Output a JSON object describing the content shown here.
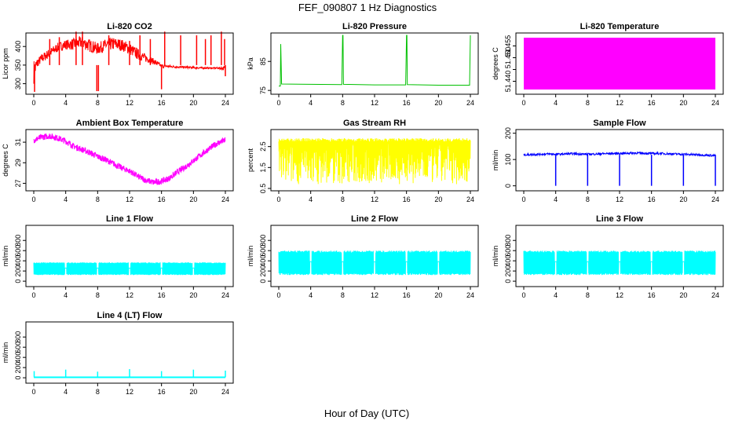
{
  "figure": {
    "title": "FEF_090807  1 Hz Diagnostics",
    "xlabel": "Hour of Day (UTC)"
  },
  "chart_data": [
    {
      "type": "line",
      "title": "Li-820 CO2",
      "ylabel": "Licor ppm",
      "xlim": [
        0,
        24
      ],
      "ylim": [
        278,
        430
      ],
      "xticks": [
        0,
        4,
        8,
        12,
        16,
        20,
        24
      ],
      "yticks": [
        300,
        350,
        400
      ],
      "color": "#ff0000",
      "envelope": {
        "x": [
          0,
          0.5,
          1,
          2,
          3,
          4,
          5,
          6,
          7,
          8,
          9,
          10,
          11,
          12,
          13,
          14,
          15,
          16,
          17,
          18,
          19,
          20,
          21,
          22,
          23,
          24
        ],
        "low": [
          300,
          345,
          355,
          370,
          385,
          392,
          390,
          395,
          385,
          378,
          388,
          390,
          388,
          378,
          365,
          358,
          352,
          343,
          343,
          342,
          341,
          340,
          340,
          340,
          340,
          335
        ],
        "high": [
          365,
          370,
          380,
          395,
          410,
          418,
          422,
          428,
          420,
          410,
          420,
          425,
          420,
          410,
          395,
          380,
          368,
          352,
          350,
          348,
          347,
          346,
          345,
          344,
          344,
          348
        ]
      },
      "spikes": [
        [
          0.1,
          278
        ],
        [
          2,
          420
        ],
        [
          3.2,
          425
        ],
        [
          5.3,
          445
        ],
        [
          6.1,
          440
        ],
        [
          7.9,
          280
        ],
        [
          8.1,
          280
        ],
        [
          9.4,
          430
        ],
        [
          12,
          415
        ],
        [
          13.3,
          430
        ],
        [
          14.6,
          420
        ],
        [
          16,
          285
        ],
        [
          16.4,
          440
        ],
        [
          18.4,
          430
        ],
        [
          20.4,
          430
        ],
        [
          21.5,
          420
        ],
        [
          22.2,
          430
        ],
        [
          23.5,
          445
        ],
        [
          23.9,
          420
        ],
        [
          24,
          320
        ]
      ]
    },
    {
      "type": "line",
      "title": "Li-820 Pressure",
      "ylabel": "kPa",
      "xlim": [
        0,
        24
      ],
      "ylim": [
        74.5,
        94
      ],
      "xticks": [
        0,
        4,
        8,
        12,
        16,
        20,
        24
      ],
      "yticks": [
        75,
        85
      ],
      "color": "#00c000",
      "x": [
        0,
        0.2,
        0.25,
        0.35,
        4,
        7.9,
        8,
        8.05,
        8.1,
        12,
        15.9,
        16,
        16.05,
        16.1,
        20,
        23.9,
        24
      ],
      "y": [
        76.5,
        76.5,
        91,
        77.2,
        77.1,
        77,
        94,
        94,
        77.1,
        76.9,
        76.9,
        94,
        94,
        77,
        76.8,
        76.8,
        94
      ]
    },
    {
      "type": "area",
      "title": "Li-820 Temperature",
      "ylabel": "degrees C",
      "xlim": [
        0,
        24
      ],
      "ylim": [
        51.4355,
        51.4595
      ],
      "xticks": [
        0,
        4,
        8,
        12,
        16,
        20,
        24
      ],
      "yticks": [
        51.44,
        51.445,
        51.45,
        51.455
      ],
      "ytick_labels": [
        "51.440",
        "",
        "51.450",
        "51.455"
      ],
      "color": "#ff00ff",
      "band": [
        51.4365,
        51.4585
      ]
    },
    {
      "type": "line",
      "title": "Ambient Box Temperature",
      "ylabel": "degrees C",
      "xlim": [
        0,
        24
      ],
      "ylim": [
        26.5,
        32
      ],
      "xticks": [
        0,
        4,
        8,
        12,
        16,
        20,
        24
      ],
      "yticks": [
        27,
        29,
        31
      ],
      "color": "#ff00ff",
      "x": [
        0,
        1,
        2,
        3,
        4,
        5,
        6,
        7,
        8,
        9,
        10,
        11,
        12,
        13,
        14,
        15,
        16,
        17,
        18,
        19,
        20,
        21,
        22,
        23,
        24
      ],
      "y": [
        31.2,
        31.5,
        31.6,
        31.4,
        31.1,
        30.6,
        30.3,
        30.0,
        29.6,
        29.3,
        28.9,
        28.5,
        28.2,
        27.7,
        27.3,
        27.1,
        27.2,
        27.5,
        28.1,
        28.6,
        29.2,
        29.8,
        30.4,
        30.9,
        31.2
      ],
      "noise": 0.3
    },
    {
      "type": "line",
      "title": "Gas Stream RH",
      "ylabel": "percent",
      "xlim": [
        0,
        24
      ],
      "ylim": [
        0.5,
        3.2
      ],
      "xticks": [
        0,
        4,
        8,
        12,
        16,
        20,
        24
      ],
      "yticks": [
        0.5,
        1.5,
        2.5
      ],
      "color": "#ffff00",
      "band": [
        0.7,
        2.9
      ]
    },
    {
      "type": "line",
      "title": "Sample Flow",
      "ylabel": "ml/min",
      "xlim": [
        0,
        24
      ],
      "ylim": [
        -10,
        205
      ],
      "xticks": [
        0,
        4,
        8,
        12,
        16,
        20,
        24
      ],
      "yticks": [
        0,
        100,
        200
      ],
      "color": "#0000ff",
      "x": [
        0,
        1,
        2,
        3,
        4,
        5,
        6,
        7,
        8,
        9,
        10,
        11,
        12,
        13,
        14,
        15,
        16,
        17,
        18,
        19,
        20,
        21,
        22,
        23,
        24
      ],
      "y": [
        118,
        119,
        120,
        121,
        120,
        121,
        122,
        121,
        120,
        121,
        122,
        123,
        123,
        124,
        125,
        124,
        123,
        123,
        122,
        121,
        120,
        119,
        118,
        116,
        115
      ],
      "dips": [
        [
          4,
          0
        ],
        [
          8,
          0
        ],
        [
          12,
          0
        ],
        [
          16,
          0
        ],
        [
          20,
          0
        ],
        [
          24,
          0
        ]
      ]
    },
    {
      "type": "line",
      "title": "Line 1 Flow",
      "ylabel": "ml/min",
      "xlim": [
        0,
        24
      ],
      "ylim": [
        -60,
        1050
      ],
      "xticks": [
        0,
        4,
        8,
        12,
        16,
        20,
        24
      ],
      "yticks": [
        0,
        200,
        400,
        600,
        800
      ],
      "color": "#00ffff",
      "band": [
        120,
        370
      ],
      "gaps": [
        4,
        8,
        12,
        16,
        20
      ]
    },
    {
      "type": "line",
      "title": "Line 2 Flow",
      "ylabel": "ml/min",
      "xlim": [
        0,
        24
      ],
      "ylim": [
        -60,
        1050
      ],
      "xticks": [
        0,
        4,
        8,
        12,
        16,
        20,
        24
      ],
      "yticks": [
        0,
        200,
        400,
        600,
        800
      ],
      "color": "#00ffff",
      "band": [
        120,
        600
      ],
      "gaps": [
        4,
        8,
        12,
        16,
        20
      ]
    },
    {
      "type": "line",
      "title": "Line 3 Flow",
      "ylabel": "ml/min",
      "xlim": [
        0,
        24
      ],
      "ylim": [
        -60,
        1050
      ],
      "xticks": [
        0,
        4,
        8,
        12,
        16,
        20,
        24
      ],
      "yticks": [
        0,
        200,
        400,
        600,
        800
      ],
      "color": "#00ffff",
      "band": [
        120,
        600
      ],
      "gaps": [
        4,
        8,
        12,
        16,
        20
      ]
    },
    {
      "type": "line",
      "title": "Line 4 (LT) Flow",
      "ylabel": "ml/min",
      "xlim": [
        0,
        24
      ],
      "ylim": [
        -60,
        1050
      ],
      "xticks": [
        0,
        4,
        8,
        12,
        16,
        20,
        24
      ],
      "yticks": [
        0,
        200,
        400,
        600,
        800
      ],
      "color": "#00ffff",
      "baseline": 10,
      "spikes": [
        [
          0.05,
          130
        ],
        [
          4,
          160
        ],
        [
          8,
          120
        ],
        [
          12,
          170
        ],
        [
          16,
          130
        ],
        [
          20,
          160
        ],
        [
          24,
          140
        ]
      ]
    }
  ]
}
